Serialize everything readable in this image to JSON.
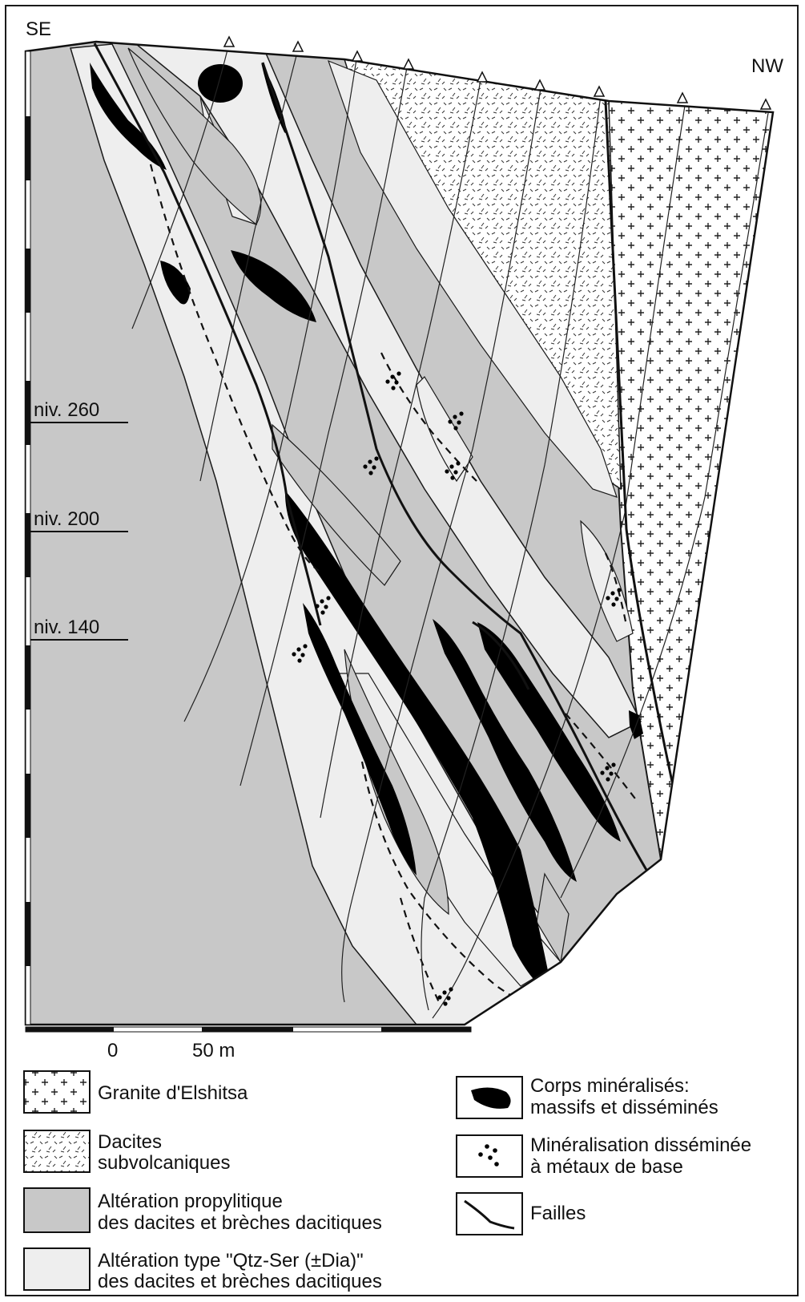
{
  "orientation": {
    "left": "SE",
    "right": "NW"
  },
  "levels": [
    {
      "label": "niv. 260"
    },
    {
      "label": "niv. 200"
    },
    {
      "label": "niv. 140"
    }
  ],
  "scale": {
    "zero": "0",
    "fifty": "50 m"
  },
  "legend": {
    "granite": {
      "line1": "Granite d'Elshitsa",
      "line2": ""
    },
    "dacites": {
      "line1": "Dacites",
      "line2": "subvolcaniques"
    },
    "propylitic": {
      "line1": "Altération propylitique",
      "line2": "des dacites et brèches dacitiques"
    },
    "qtzser": {
      "line1": "Altération type \"Qtz-Ser (±Dia)\"",
      "line2": "des dacites et brèches dacitiques"
    },
    "ore": {
      "line1": "Corps minéralisés:",
      "line2": "massifs et disséminés"
    },
    "dissem": {
      "line1": "Minéralisation disséminée",
      "line2": "à métaux de base"
    },
    "faults": {
      "line1": "Failles",
      "line2": ""
    }
  },
  "colors": {
    "propylitic": "#c8c8c8",
    "qtzser": "#eeeeee",
    "ore": "#000000",
    "line": "#1a1a1a"
  }
}
